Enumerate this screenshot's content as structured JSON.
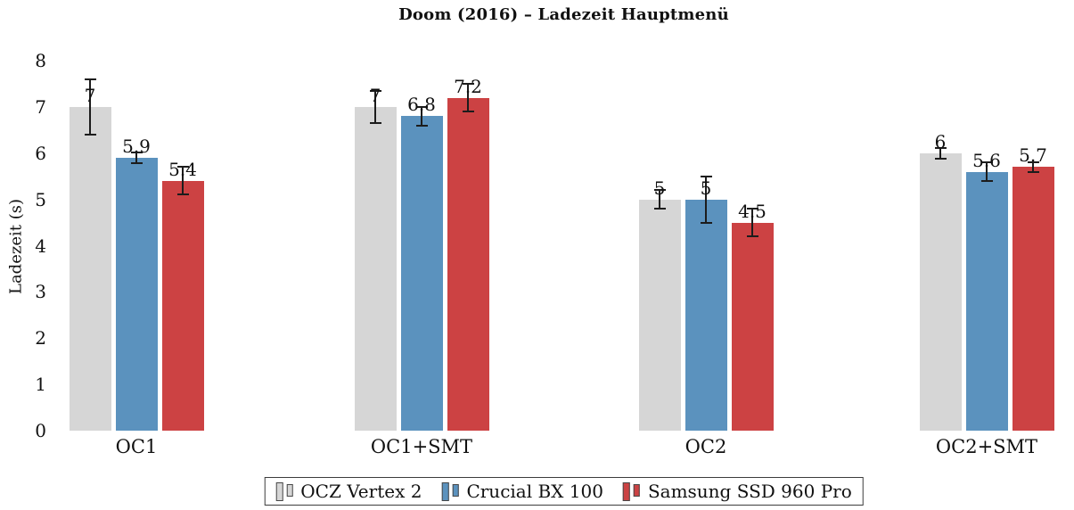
{
  "chart_data": {
    "type": "bar",
    "title": "Doom (2016) – Ladezeit Hauptmenü",
    "ylabel": "Ladezeit (s)",
    "xlabel": "",
    "ylim": [
      0,
      8
    ],
    "yticks": [
      "0",
      "1",
      "2",
      "3",
      "4",
      "5",
      "6",
      "7",
      "8"
    ],
    "grid": false,
    "axis_lines": "none",
    "legend_position": "bottom-center",
    "error_bar_color": "#1c1c1c",
    "legend_marker_border": "#474747",
    "categories": [
      "OC1",
      "OC1+SMT",
      "OC2",
      "OC2+SMT"
    ],
    "series": [
      {
        "name": "OCZ Vertex 2",
        "color": "#d6d6d6",
        "values": [
          7,
          7,
          5,
          6
        ],
        "value_labels": [
          "7",
          "7",
          "5",
          "6"
        ],
        "errors": [
          0.6,
          0.35,
          0.2,
          0.12
        ]
      },
      {
        "name": "Crucial BX 100",
        "color": "#5b92be",
        "values": [
          5.9,
          6.8,
          5,
          5.6
        ],
        "value_labels": [
          "5.9",
          "6.8",
          "5",
          "5.6"
        ],
        "errors": [
          0.12,
          0.2,
          0.5,
          0.2
        ]
      },
      {
        "name": "Samsung SSD 960 Pro",
        "color": "#cc4243",
        "values": [
          5.4,
          7.2,
          4.5,
          5.7
        ],
        "value_labels": [
          "5.4",
          "7.2",
          "4.5",
          "5.7"
        ],
        "errors": [
          0.3,
          0.3,
          0.3,
          0.1
        ]
      }
    ]
  }
}
